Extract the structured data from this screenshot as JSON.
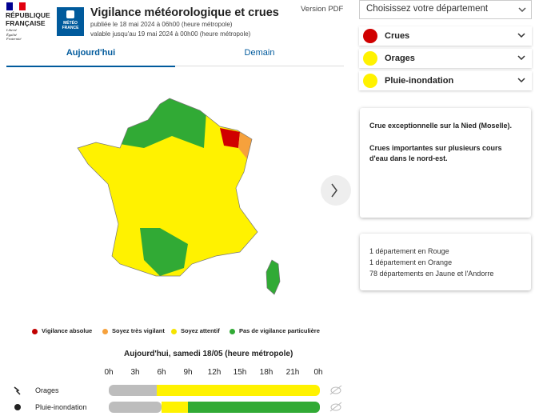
{
  "header": {
    "republique": [
      "RÉPUBLIQUE",
      "FRANÇAISE"
    ],
    "motto": [
      "Liberté",
      "Égalité",
      "Fraternité"
    ],
    "meteo": [
      "MÉTÉO",
      "FRANCE"
    ],
    "title": "Vigilance météorologique et crues",
    "published": "publiée le 18 mai 2024 à 06h00 (heure métropole)",
    "valid": "valable jusqu'au 19 mai 2024 à 00h00 (heure métropole)",
    "pdf": "Version PDF"
  },
  "tabs": [
    "Aujourd'hui",
    "Demain"
  ],
  "legend": [
    "Vigilance absolue",
    "Soyez très vigilant",
    "Soyez attentif",
    "Pas de vigilance particulière"
  ],
  "timeline": {
    "title": "Aujourd'hui, samedi 18/05 (heure métropole)",
    "hours": [
      "0h",
      "3h",
      "6h",
      "9h",
      "12h",
      "15h",
      "18h",
      "21h",
      "0h"
    ],
    "rows": [
      "Orages",
      "Pluie-inondation"
    ]
  },
  "sidebar": {
    "select": "Choisissez votre département",
    "accordion": [
      "Crues",
      "Orages",
      "Pluie-inondation"
    ],
    "info": [
      "Crue exceptionnelle sur la Nied (Moselle).",
      "Crues importantes sur plusieurs cours d'eau dans le nord-est."
    ],
    "counts": [
      "1 département en Rouge",
      "1 département en Orange",
      "78 départements en Jaune et l'Andorre"
    ]
  }
}
